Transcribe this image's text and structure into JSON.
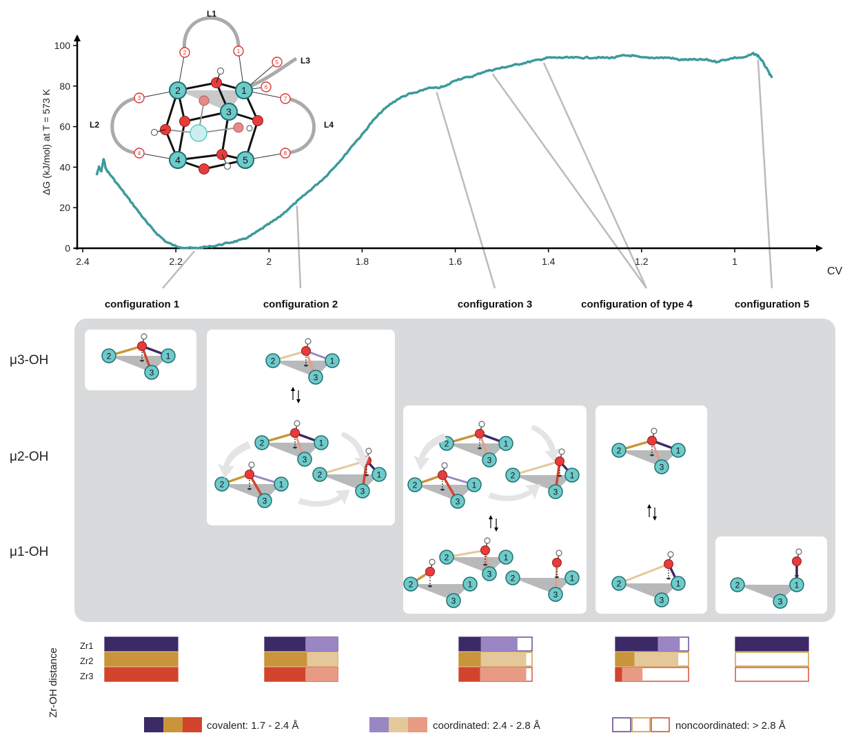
{
  "chart_data": {
    "type": "line",
    "title": "",
    "ylabel": "ΔG (kJ/mol) at T = 573 K",
    "xlabel": "CV",
    "xlim": [
      2.4,
      0.9
    ],
    "ylim": [
      0,
      100
    ],
    "x_reversed": true,
    "x_ticks": [
      "2.4",
      "2.2",
      "2",
      "1.8",
      "1.6",
      "1.4",
      "1.2",
      "1"
    ],
    "y_ticks": [
      "0",
      "20",
      "40",
      "60",
      "80",
      "100"
    ],
    "line_color": "#3d9a9a",
    "series": [
      {
        "x": [
          2.37,
          2.365,
          2.36,
          2.355,
          2.35,
          2.34,
          2.32,
          2.3,
          2.28,
          2.26,
          2.24,
          2.22,
          2.2,
          2.18,
          2.16,
          2.14,
          2.12,
          2.1,
          2.08,
          2.06,
          2.04,
          2.02,
          2.0,
          1.98,
          1.96,
          1.94,
          1.92,
          1.9,
          1.88,
          1.86,
          1.84,
          1.82,
          1.8,
          1.78,
          1.76,
          1.74,
          1.72,
          1.7,
          1.68,
          1.66,
          1.64,
          1.62,
          1.6,
          1.58,
          1.56,
          1.54,
          1.52,
          1.5,
          1.48,
          1.46,
          1.44,
          1.42,
          1.4,
          1.38,
          1.36,
          1.34,
          1.32,
          1.3,
          1.28,
          1.26,
          1.24,
          1.22,
          1.2,
          1.18,
          1.16,
          1.14,
          1.12,
          1.1,
          1.08,
          1.06,
          1.04,
          1.02,
          1.0,
          0.98,
          0.96,
          0.95,
          0.94,
          0.93,
          0.92
        ],
        "y": [
          36,
          40,
          38,
          44,
          39,
          36,
          30,
          24,
          18,
          12,
          7,
          3,
          1,
          0.3,
          0,
          0.5,
          1,
          2,
          3,
          4,
          6,
          9,
          12,
          15,
          19,
          23,
          27,
          31,
          35,
          40,
          45,
          51,
          56,
          62,
          67,
          71,
          74,
          76,
          77,
          79,
          79,
          80,
          83,
          84,
          85,
          87,
          88,
          89,
          90,
          91,
          92,
          93,
          94,
          94,
          94,
          94,
          94,
          94,
          94,
          94,
          95,
          95,
          94,
          94,
          94,
          94,
          93,
          93,
          93,
          93,
          92,
          93,
          94,
          94,
          96,
          95,
          92,
          88,
          84
        ]
      }
    ],
    "annotations": [
      "configuration 1",
      "configuration 2",
      "configuration 3",
      "configuration of type 4",
      "configuration 5"
    ],
    "annotation_cv": [
      2.2,
      1.94,
      1.64,
      1.44,
      0.95
    ]
  },
  "inset_labels": {
    "loops": [
      "L1",
      "L2",
      "L3",
      "L4"
    ],
    "zr": [
      "1",
      "2",
      "3",
      "4",
      "5"
    ],
    "sites": [
      "1",
      "2",
      "3",
      "4",
      "5",
      "6",
      "7",
      "8"
    ]
  },
  "rows": [
    "μ3-OH",
    "μ2-OH",
    "μ1-OH"
  ],
  "zr_labels": [
    "1",
    "2",
    "3"
  ],
  "bars": {
    "axis_label": "Zr-OH distance",
    "rows": [
      "Zr1",
      "Zr2",
      "Zr3"
    ],
    "groups": [
      {
        "name": "configuration 1",
        "Zr1": [
          1.0,
          0.0,
          0.0
        ],
        "Zr2": [
          1.0,
          0.0,
          0.0
        ],
        "Zr3": [
          1.0,
          0.0,
          0.0
        ]
      },
      {
        "name": "configuration 2",
        "Zr1": [
          0.56,
          0.44,
          0.0
        ],
        "Zr2": [
          0.58,
          0.42,
          0.0
        ],
        "Zr3": [
          0.56,
          0.44,
          0.0
        ]
      },
      {
        "name": "configuration 3",
        "Zr1": [
          0.3,
          0.5,
          0.2
        ],
        "Zr2": [
          0.3,
          0.62,
          0.08
        ],
        "Zr3": [
          0.29,
          0.63,
          0.08
        ]
      },
      {
        "name": "configuration of type 4",
        "Zr1": [
          0.58,
          0.3,
          0.12
        ],
        "Zr2": [
          0.26,
          0.6,
          0.14
        ],
        "Zr3": [
          0.09,
          0.28,
          0.63
        ]
      },
      {
        "name": "configuration 5",
        "Zr1": [
          1.0,
          0.0,
          0.0
        ],
        "Zr2": [
          0.0,
          0.0,
          1.0
        ],
        "Zr3": [
          0.0,
          0.0,
          1.0
        ]
      }
    ],
    "colors": {
      "Zr1": {
        "covalent": "#3b2a66",
        "coordinated": "#9a86c3",
        "noncoordinated_border": "#5b3f8c"
      },
      "Zr2": {
        "covalent": "#c9943a",
        "coordinated": "#e4c89a",
        "noncoordinated_border": "#c9943a"
      },
      "Zr3": {
        "covalent": "#d3442e",
        "coordinated": "#e99a85",
        "noncoordinated_border": "#d3442e"
      }
    }
  },
  "legend": {
    "covalent": "covalent: 1.7 - 2.4 Å",
    "coordinated": "coordinated: 2.4 - 2.8 Å",
    "noncoordinated": "noncoordinated: > 2.8 Å"
  }
}
